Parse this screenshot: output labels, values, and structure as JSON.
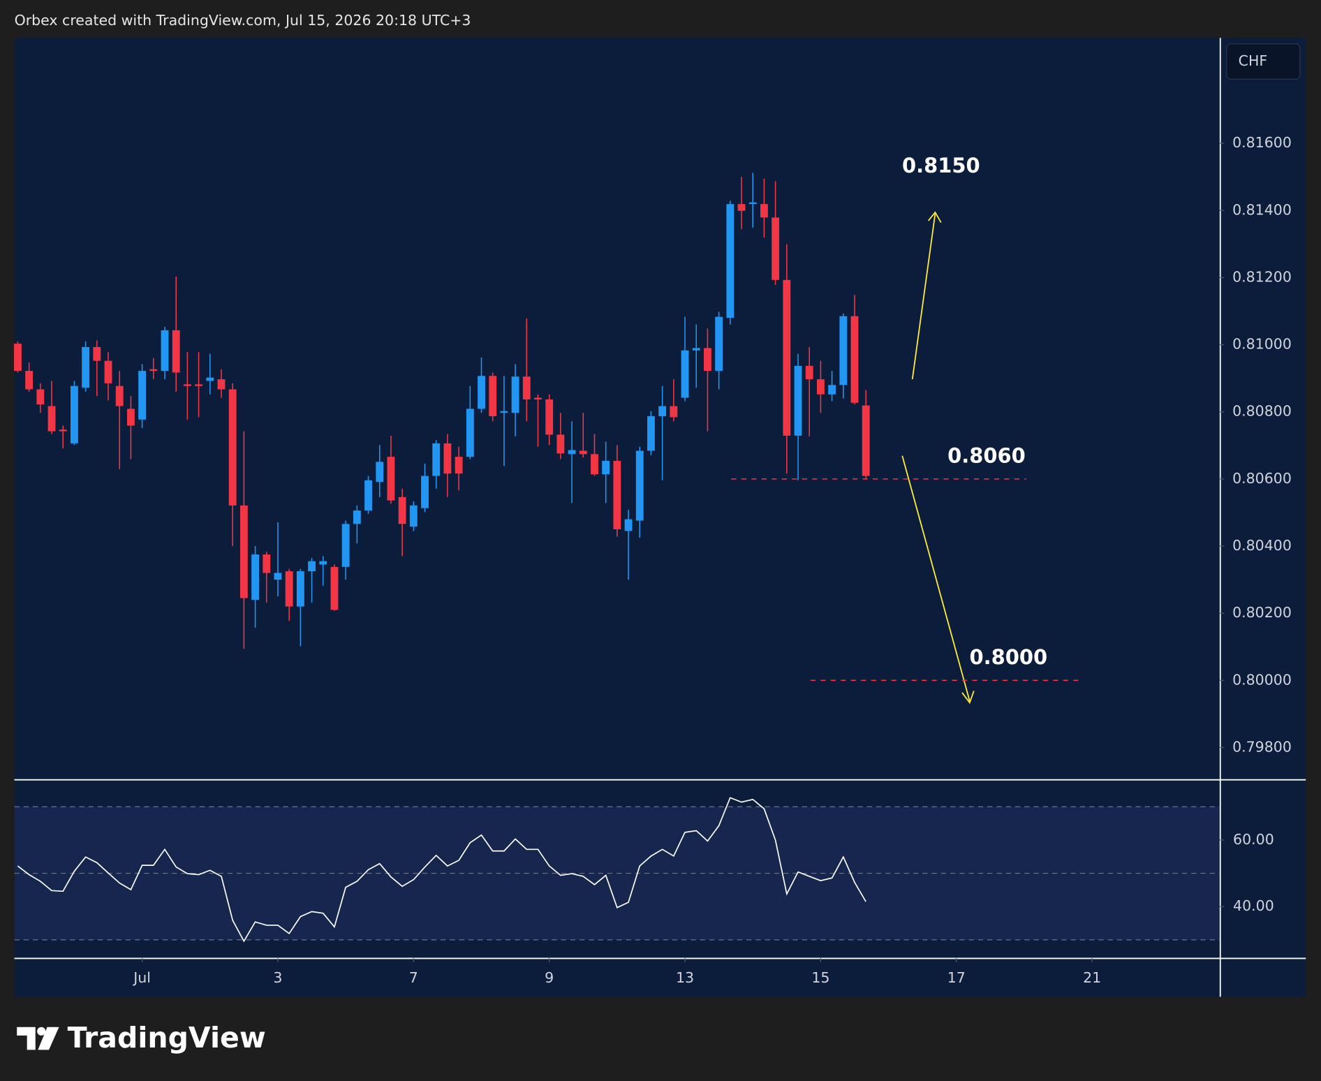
{
  "chart_data": {
    "type": "candlestick",
    "header": "Orbex created with TradingView.com, Jul 15, 2026 20:18 UTC+3",
    "currency": "CHF",
    "brand": "TradingView",
    "up_color": "#2196f3",
    "down_color": "#f23645",
    "open": [
      0.81003,
      0.80922,
      0.80867,
      0.80817,
      0.80747,
      0.80706,
      0.80872,
      0.80993,
      0.80952,
      0.80877,
      0.80809,
      0.80777,
      0.80927,
      0.80922,
      0.81043,
      0.80882,
      0.80882,
      0.80892,
      0.80897,
      0.80867,
      0.80521,
      0.8024,
      0.80375,
      0.803,
      0.80325,
      0.8022,
      0.80325,
      0.80345,
      0.80338,
      0.80338,
      0.80466,
      0.80506,
      0.80591,
      0.80666,
      0.80546,
      0.80458,
      0.80513,
      0.80609,
      0.80706,
      0.80666,
      0.80666,
      0.80809,
      0.80907,
      0.80797,
      0.80797,
      0.80905,
      0.80842,
      0.80837,
      0.80732,
      0.80674,
      0.80684,
      0.80674,
      0.80614,
      0.80654,
      0.80445,
      0.80476,
      0.80684,
      0.80787,
      0.80817,
      0.80842,
      0.80983,
      0.8099,
      0.80922,
      0.8108,
      0.81419,
      0.81419,
      0.81419,
      0.81379,
      0.81193,
      0.80729,
      0.80937,
      0.80897,
      0.80852,
      0.8088,
      0.81085,
      0.80819
    ],
    "high": [
      0.8101,
      0.80947,
      0.80885,
      0.80892,
      0.80759,
      0.80892,
      0.8101,
      0.81013,
      0.80978,
      0.80922,
      0.80847,
      0.80942,
      0.8096,
      0.81053,
      0.81203,
      0.80978,
      0.80978,
      0.80973,
      0.80927,
      0.80885,
      0.80742,
      0.804,
      0.80383,
      0.80471,
      0.80332,
      0.80332,
      0.80365,
      0.8037,
      0.80345,
      0.80476,
      0.80521,
      0.80609,
      0.80701,
      0.80729,
      0.80571,
      0.80533,
      0.80646,
      0.80716,
      0.80734,
      0.80696,
      0.80877,
      0.80962,
      0.80917,
      0.80907,
      0.80942,
      0.81078,
      0.80852,
      0.80852,
      0.80797,
      0.80772,
      0.80797,
      0.80734,
      0.80711,
      0.80701,
      0.80508,
      0.80696,
      0.80802,
      0.80877,
      0.80897,
      0.81083,
      0.8106,
      0.81048,
      0.81098,
      0.81429,
      0.815,
      0.81512,
      0.81495,
      0.81487,
      0.81299,
      0.80973,
      0.80993,
      0.80952,
      0.80922,
      0.81093,
      0.81148,
      0.80865
    ],
    "low": [
      0.80917,
      0.8086,
      0.80797,
      0.80734,
      0.80691,
      0.80701,
      0.8086,
      0.80847,
      0.80834,
      0.80629,
      0.80659,
      0.80752,
      0.80897,
      0.80897,
      0.8086,
      0.80777,
      0.80784,
      0.80852,
      0.80842,
      0.804,
      0.80094,
      0.80157,
      0.80232,
      0.8025,
      0.80177,
      0.80102,
      0.80232,
      0.80282,
      0.80207,
      0.803,
      0.80408,
      0.80496,
      0.80546,
      0.80526,
      0.8037,
      0.80445,
      0.80501,
      0.80571,
      0.80546,
      0.80566,
      0.80659,
      0.80797,
      0.80772,
      0.80639,
      0.80727,
      0.80772,
      0.80696,
      0.80701,
      0.80659,
      0.80528,
      0.80664,
      0.80609,
      0.80528,
      0.80428,
      0.803,
      0.80425,
      0.80671,
      0.80596,
      0.80772,
      0.80832,
      0.80872,
      0.80742,
      0.80867,
      0.8106,
      0.81344,
      0.81349,
      0.81319,
      0.81178,
      0.80616,
      0.80596,
      0.80727,
      0.80797,
      0.80832,
      0.8084,
      0.80822,
      0.80601
    ],
    "close": [
      0.80922,
      0.80867,
      0.80822,
      0.80742,
      0.80742,
      0.80877,
      0.80993,
      0.80952,
      0.80885,
      0.80817,
      0.80759,
      0.80922,
      0.80922,
      0.81043,
      0.80917,
      0.80877,
      0.80877,
      0.80902,
      0.80867,
      0.80521,
      0.80245,
      0.80375,
      0.8032,
      0.8032,
      0.8022,
      0.80325,
      0.80355,
      0.80355,
      0.8021,
      0.80466,
      0.80506,
      0.80596,
      0.80651,
      0.80536,
      0.80466,
      0.80521,
      0.80609,
      0.80706,
      0.80616,
      0.80616,
      0.80809,
      0.80907,
      0.80787,
      0.80802,
      0.80905,
      0.80837,
      0.80837,
      0.80732,
      0.80676,
      0.80686,
      0.80674,
      0.80614,
      0.80654,
      0.8045,
      0.8048,
      0.80684,
      0.80787,
      0.80817,
      0.80784,
      0.80983,
      0.8099,
      0.80922,
      0.81083,
      0.81419,
      0.81399,
      0.81424,
      0.81379,
      0.81193,
      0.80729,
      0.80937,
      0.80897,
      0.80852,
      0.8088,
      0.81085,
      0.80827,
      0.80609
    ],
    "xlim": [
      -0.3,
      106.3
    ],
    "xticks": [
      {
        "value": 11,
        "label": "Jul"
      },
      {
        "value": 23,
        "label": "3"
      },
      {
        "value": 35,
        "label": "7"
      },
      {
        "value": 47,
        "label": "9"
      },
      {
        "value": 59,
        "label": "13"
      },
      {
        "value": 71,
        "label": "15"
      },
      {
        "value": 83,
        "label": "17"
      },
      {
        "value": 95,
        "label": "21"
      }
    ],
    "ylim": [
      0.79705,
      0.81914
    ],
    "yticks": [
      {
        "value": 0.816,
        "label": "0.81600"
      },
      {
        "value": 0.814,
        "label": "0.81400"
      },
      {
        "value": 0.812,
        "label": "0.81200"
      },
      {
        "value": 0.81,
        "label": "0.81000"
      },
      {
        "value": 0.808,
        "label": "0.80800"
      },
      {
        "value": 0.806,
        "label": "0.80600"
      },
      {
        "value": 0.804,
        "label": "0.80400"
      },
      {
        "value": 0.802,
        "label": "0.80200"
      },
      {
        "value": 0.8,
        "label": "0.80000"
      },
      {
        "value": 0.798,
        "label": "0.79800"
      }
    ],
    "annotations": [
      {
        "value": 0.815,
        "label": "0.8150"
      },
      {
        "value": 0.806,
        "label": "0.8060"
      },
      {
        "value": 0.8,
        "label": "0.8000"
      }
    ],
    "level_lines": [
      0.806,
      0.8
    ],
    "level_color": "#f23645",
    "arrow_color": "#ffeb3b",
    "rsi": {
      "color": "#ffffff",
      "values": [
        52.2,
        49.6,
        47.6,
        44.8,
        44.6,
        50.6,
        54.9,
        53.2,
        50.1,
        47.1,
        45.1,
        52.4,
        52.4,
        57.2,
        51.9,
        49.9,
        49.6,
        50.9,
        49.1,
        35.9,
        29.6,
        35.4,
        34.4,
        34.4,
        31.9,
        37.0,
        38.5,
        38.0,
        33.9,
        45.8,
        47.6,
        51.1,
        52.9,
        48.9,
        46.1,
        48.1,
        51.9,
        55.4,
        52.2,
        53.9,
        59.2,
        61.5,
        56.7,
        56.7,
        60.3,
        57.2,
        57.2,
        52.2,
        49.4,
        49.9,
        49.1,
        46.6,
        49.4,
        39.7,
        41.3,
        52.2,
        55.2,
        57.2,
        55.2,
        62.3,
        62.8,
        59.7,
        64.3,
        72.7,
        71.4,
        72.2,
        69.4,
        60.0,
        43.8,
        50.4,
        49.1,
        47.8,
        48.6,
        54.9,
        47.3,
        41.5
      ],
      "ylim": [
        24.56,
        77.97
      ],
      "yticks": [
        {
          "value": 60,
          "label": "60.00"
        },
        {
          "value": 40,
          "label": "40.00"
        }
      ],
      "levels": [
        70,
        50,
        30
      ]
    }
  }
}
